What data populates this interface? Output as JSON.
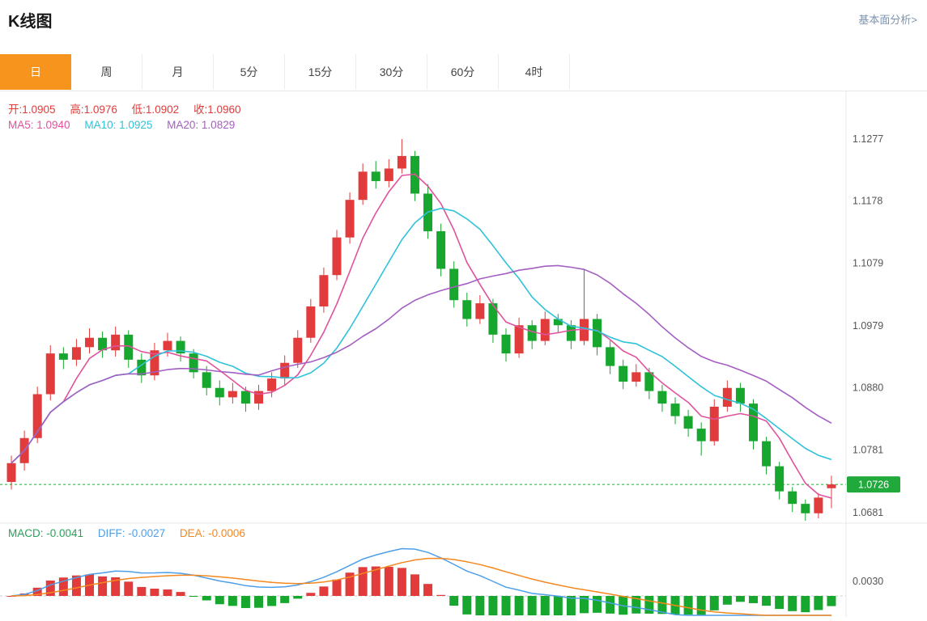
{
  "page": {
    "title": "K线图",
    "analysis_link": "基本面分析>"
  },
  "tabs": [
    {
      "id": "day",
      "label": "日",
      "active": true
    },
    {
      "id": "week",
      "label": "周",
      "active": false
    },
    {
      "id": "month",
      "label": "月",
      "active": false
    },
    {
      "id": "5min",
      "label": "5分",
      "active": false
    },
    {
      "id": "15min",
      "label": "15分",
      "active": false
    },
    {
      "id": "30min",
      "label": "30分",
      "active": false
    },
    {
      "id": "60min",
      "label": "60分",
      "active": false
    },
    {
      "id": "4hour",
      "label": "4时",
      "active": false
    }
  ],
  "legend": {
    "ohlc_color": "#e23b3b",
    "ohlc": [
      {
        "text": "开:1.0905"
      },
      {
        "text": "高:1.0976"
      },
      {
        "text": "低:1.0902"
      },
      {
        "text": "收:1.0960"
      }
    ],
    "ma": [
      {
        "text": "MA5: 1.0940",
        "color": "#e0529c"
      },
      {
        "text": "MA10: 1.0925",
        "color": "#2fc2d9"
      },
      {
        "text": "MA20: 1.0829",
        "color": "#a45fc2"
      }
    ],
    "macd": [
      {
        "text": "MACD: -0.0041",
        "color": "#2aa05a"
      },
      {
        "text": "DIFF: -0.0027",
        "color": "#4f9ee8"
      },
      {
        "text": "DEA: -0.0006",
        "color": "#f5871f"
      }
    ]
  },
  "colors": {
    "up": "#e23b3b",
    "down": "#17a62e",
    "ma5": "#e0529c",
    "ma10": "#2fc2d9",
    "ma20": "#a45fc2",
    "diff_line": "#4f9ee8",
    "dea_line": "#f5871f",
    "current_line": "#21a93c",
    "tab_active_bg": "#f7941e",
    "axis_text": "#555555",
    "grid_line": "#e8e8e8"
  },
  "chart_data": {
    "type": "candlestick_with_macd",
    "title": "K线图",
    "legend_position": "top-left",
    "grid": false,
    "price_axis": {
      "min": 1.0681,
      "max": 1.1277,
      "ticks": [
        1.1277,
        1.1178,
        1.1079,
        1.0979,
        1.088,
        1.0781,
        1.0681
      ],
      "current_price": 1.0726
    },
    "macd_axis": {
      "tick": 0.003,
      "zero_line": true
    },
    "overlays": [
      "MA5",
      "MA10",
      "MA20"
    ],
    "indicator": {
      "type": "MACD",
      "params": [
        12,
        26,
        9
      ],
      "current": {
        "macd": -0.0041,
        "diff": -0.0027,
        "dea": -0.0006
      }
    },
    "ohlc_display": {
      "open": 1.0905,
      "high": 1.0976,
      "low": 1.0902,
      "close": 1.096
    },
    "ma_display": {
      "ma5": 1.094,
      "ma10": 1.0925,
      "ma20": 1.0829
    },
    "candles": [
      [
        1.073,
        1.0772,
        1.0718,
        1.076
      ],
      [
        1.076,
        1.0812,
        1.0748,
        1.08
      ],
      [
        1.08,
        1.0882,
        1.0792,
        1.087
      ],
      [
        1.087,
        1.0948,
        1.086,
        1.0935
      ],
      [
        1.0935,
        1.0945,
        1.091,
        1.0925
      ],
      [
        1.0925,
        1.0958,
        1.0915,
        1.0945
      ],
      [
        1.0945,
        1.0975,
        1.0935,
        1.096
      ],
      [
        1.096,
        1.097,
        1.0928,
        1.094
      ],
      [
        1.094,
        1.0978,
        1.093,
        1.0965
      ],
      [
        1.0965,
        1.0972,
        1.0912,
        1.0925
      ],
      [
        1.0925,
        1.0935,
        1.0888,
        1.09
      ],
      [
        1.09,
        1.0952,
        1.0892,
        1.094
      ],
      [
        1.094,
        1.0968,
        1.093,
        1.0955
      ],
      [
        1.0955,
        1.0962,
        1.0922,
        1.0935
      ],
      [
        1.0935,
        1.0942,
        1.0895,
        1.0905
      ],
      [
        1.0905,
        1.0915,
        1.0868,
        1.088
      ],
      [
        1.088,
        1.0892,
        1.0852,
        1.0865
      ],
      [
        1.0865,
        1.0888,
        1.0855,
        1.0875
      ],
      [
        1.0875,
        1.0882,
        1.0842,
        1.0855
      ],
      [
        1.0855,
        1.0885,
        1.0845,
        1.0875
      ],
      [
        1.0875,
        1.0905,
        1.0865,
        1.0895
      ],
      [
        1.0895,
        1.0932,
        1.0885,
        1.092
      ],
      [
        1.092,
        1.0972,
        1.0912,
        1.096
      ],
      [
        1.096,
        1.1022,
        1.0952,
        1.101
      ],
      [
        1.101,
        1.1072,
        1.1,
        1.106
      ],
      [
        1.106,
        1.1132,
        1.1052,
        1.112
      ],
      [
        1.112,
        1.1192,
        1.111,
        1.118
      ],
      [
        1.118,
        1.1238,
        1.1172,
        1.1225
      ],
      [
        1.1225,
        1.1242,
        1.1198,
        1.121
      ],
      [
        1.121,
        1.1245,
        1.12,
        1.123
      ],
      [
        1.123,
        1.1277,
        1.1222,
        1.125
      ],
      [
        1.125,
        1.1258,
        1.1178,
        1.119
      ],
      [
        1.119,
        1.1205,
        1.1118,
        1.113
      ],
      [
        1.113,
        1.1142,
        1.1058,
        1.107
      ],
      [
        1.107,
        1.1082,
        1.1008,
        1.102
      ],
      [
        1.102,
        1.1032,
        1.0978,
        1.099
      ],
      [
        1.099,
        1.1028,
        1.0982,
        1.1015
      ],
      [
        1.1015,
        1.1022,
        1.0952,
        1.0965
      ],
      [
        1.0965,
        1.0975,
        1.0922,
        1.0935
      ],
      [
        1.0935,
        1.0992,
        1.0928,
        1.098
      ],
      [
        1.098,
        1.0988,
        1.0942,
        1.0955
      ],
      [
        1.0955,
        1.1002,
        1.0948,
        1.099
      ],
      [
        1.099,
        1.0998,
        1.0968,
        1.098
      ],
      [
        1.098,
        1.0988,
        1.0942,
        1.0955
      ],
      [
        1.0955,
        1.107,
        1.0948,
        1.099
      ],
      [
        1.099,
        1.0998,
        1.0932,
        1.0945
      ],
      [
        1.0945,
        1.0955,
        1.0902,
        1.0915
      ],
      [
        1.0915,
        1.0925,
        1.0878,
        1.089
      ],
      [
        1.089,
        1.0918,
        1.0882,
        1.0905
      ],
      [
        1.0905,
        1.0912,
        1.0862,
        1.0875
      ],
      [
        1.0875,
        1.0885,
        1.0842,
        1.0855
      ],
      [
        1.0855,
        1.0865,
        1.0822,
        1.0835
      ],
      [
        1.0835,
        1.0845,
        1.0802,
        1.0815
      ],
      [
        1.0815,
        1.0825,
        1.0772,
        1.0795
      ],
      [
        1.0795,
        1.0862,
        1.0788,
        1.085
      ],
      [
        1.085,
        1.0892,
        1.0842,
        1.088
      ],
      [
        1.088,
        1.0888,
        1.0842,
        1.0855
      ],
      [
        1.0855,
        1.0862,
        1.0782,
        1.0795
      ],
      [
        1.0795,
        1.0802,
        1.0742,
        1.0755
      ],
      [
        1.0755,
        1.0762,
        1.0702,
        1.0715
      ],
      [
        1.0715,
        1.0722,
        1.0682,
        1.0695
      ],
      [
        1.0695,
        1.0702,
        1.0668,
        1.068
      ],
      [
        1.068,
        1.0712,
        1.0672,
        1.0705
      ],
      [
        1.072,
        1.074,
        1.0688,
        1.0726
      ]
    ]
  },
  "axis": {
    "price_ticks": [
      "1.1277",
      "1.1178",
      "1.1079",
      "1.0979",
      "1.0880",
      "1.0781",
      "1.0681"
    ],
    "current_price": "1.0726",
    "macd_tick": "0.0030"
  }
}
